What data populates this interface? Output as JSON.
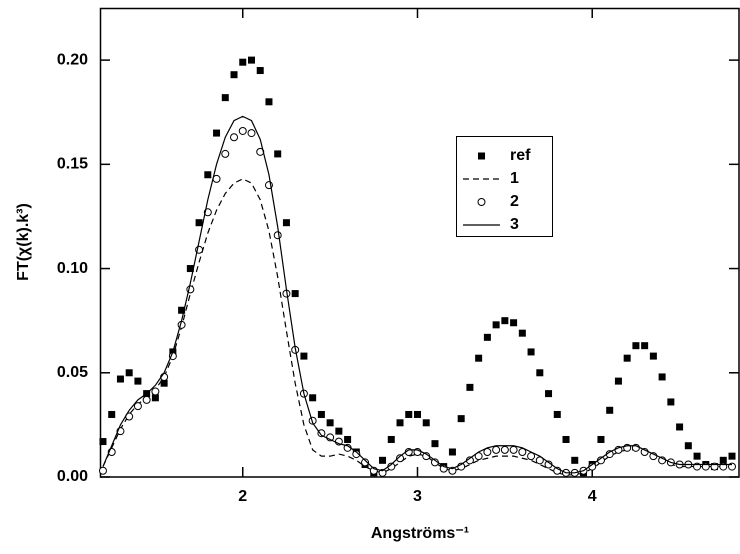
{
  "chart_data": {
    "type": "scatter-line",
    "ylabel": "FT(χ(k).k³)",
    "xlabel": "Angströms⁻¹",
    "xlim": [
      1.183,
      4.84
    ],
    "ylim": [
      0,
      0.225
    ],
    "xticks": [
      2,
      3,
      4
    ],
    "yticks": [
      {
        "value": 0,
        "label": "0.00"
      },
      {
        "value": 0.05,
        "label": "0.05"
      },
      {
        "value": 0.1,
        "label": "0.10"
      },
      {
        "value": 0.15,
        "label": "0.15"
      },
      {
        "value": 0.2,
        "label": "0.20"
      }
    ],
    "grid": false,
    "legend": "upper center",
    "x": [
      1.2,
      1.25,
      1.3,
      1.35,
      1.4,
      1.45,
      1.5,
      1.55,
      1.6,
      1.65,
      1.7,
      1.75,
      1.8,
      1.85,
      1.9,
      1.95,
      2.0,
      2.05,
      2.1,
      2.15,
      2.2,
      2.25,
      2.3,
      2.35,
      2.4,
      2.45,
      2.5,
      2.55,
      2.6,
      2.65,
      2.7,
      2.75,
      2.8,
      2.85,
      2.9,
      2.95,
      3.0,
      3.05,
      3.1,
      3.15,
      3.2,
      3.25,
      3.3,
      3.35,
      3.4,
      3.45,
      3.5,
      3.55,
      3.6,
      3.65,
      3.7,
      3.75,
      3.8,
      3.85,
      3.9,
      3.95,
      4.0,
      4.05,
      4.1,
      4.15,
      4.2,
      4.25,
      4.3,
      4.35,
      4.4,
      4.45,
      4.5,
      4.55,
      4.6,
      4.65,
      4.7,
      4.75,
      4.8
    ],
    "series": [
      {
        "name": "ref",
        "color": "#000000",
        "marker": "square",
        "line": "none",
        "values": [
          0.017,
          0.03,
          0.047,
          0.05,
          0.046,
          0.04,
          0.038,
          0.045,
          0.06,
          0.08,
          0.1,
          0.122,
          0.145,
          0.165,
          0.182,
          0.193,
          0.199,
          0.2,
          0.195,
          0.18,
          0.155,
          0.122,
          0.088,
          0.058,
          0.038,
          0.03,
          0.026,
          0.022,
          0.018,
          0.012,
          0.006,
          0.002,
          0.008,
          0.018,
          0.026,
          0.03,
          0.03,
          0.026,
          0.016,
          0.005,
          0.012,
          0.028,
          0.043,
          0.057,
          0.067,
          0.073,
          0.075,
          0.074,
          0.069,
          0.06,
          0.05,
          0.04,
          0.03,
          0.018,
          0.008,
          0.002,
          0.006,
          0.018,
          0.032,
          0.046,
          0.057,
          0.063,
          0.063,
          0.058,
          0.048,
          0.036,
          0.024,
          0.015,
          0.01,
          0.006,
          0.005,
          0.008,
          0.01
        ]
      },
      {
        "name": "1",
        "color": "#000000",
        "marker": "none",
        "line": "dashed",
        "values": [
          0.005,
          0.014,
          0.023,
          0.03,
          0.035,
          0.038,
          0.042,
          0.048,
          0.058,
          0.072,
          0.088,
          0.103,
          0.117,
          0.128,
          0.136,
          0.141,
          0.143,
          0.141,
          0.133,
          0.118,
          0.096,
          0.07,
          0.045,
          0.025,
          0.013,
          0.01,
          0.01,
          0.011,
          0.01,
          0.008,
          0.005,
          0.003,
          0.002,
          0.004,
          0.007,
          0.01,
          0.011,
          0.01,
          0.007,
          0.004,
          0.003,
          0.004,
          0.006,
          0.008,
          0.009,
          0.01,
          0.01,
          0.01,
          0.009,
          0.008,
          0.006,
          0.004,
          0.002,
          0.001,
          0.001,
          0.002,
          0.004,
          0.007,
          0.01,
          0.012,
          0.013,
          0.013,
          0.012,
          0.01,
          0.008,
          0.006,
          0.005,
          0.005,
          0.005,
          0.005,
          0.005,
          0.005,
          0.005
        ]
      },
      {
        "name": "2",
        "color": "#000000",
        "marker": "circle",
        "line": "none",
        "values": [
          0.003,
          0.012,
          0.022,
          0.029,
          0.034,
          0.037,
          0.041,
          0.048,
          0.058,
          0.073,
          0.09,
          0.109,
          0.127,
          0.143,
          0.155,
          0.163,
          0.166,
          0.165,
          0.156,
          0.14,
          0.116,
          0.088,
          0.061,
          0.04,
          0.027,
          0.021,
          0.019,
          0.017,
          0.014,
          0.011,
          0.007,
          0.003,
          0.002,
          0.005,
          0.009,
          0.012,
          0.012,
          0.01,
          0.007,
          0.004,
          0.003,
          0.005,
          0.008,
          0.01,
          0.012,
          0.013,
          0.013,
          0.013,
          0.012,
          0.01,
          0.008,
          0.006,
          0.003,
          0.002,
          0.002,
          0.003,
          0.005,
          0.008,
          0.011,
          0.013,
          0.014,
          0.014,
          0.012,
          0.01,
          0.008,
          0.007,
          0.006,
          0.006,
          0.005,
          0.005,
          0.005,
          0.005,
          0.005
        ]
      },
      {
        "name": "3",
        "color": "#000000",
        "marker": "none",
        "line": "solid",
        "values": [
          0.005,
          0.015,
          0.025,
          0.032,
          0.037,
          0.04,
          0.044,
          0.05,
          0.06,
          0.075,
          0.093,
          0.113,
          0.133,
          0.15,
          0.163,
          0.171,
          0.173,
          0.171,
          0.162,
          0.145,
          0.12,
          0.09,
          0.062,
          0.04,
          0.026,
          0.02,
          0.018,
          0.016,
          0.015,
          0.012,
          0.008,
          0.004,
          0.003,
          0.006,
          0.01,
          0.013,
          0.013,
          0.011,
          0.008,
          0.005,
          0.004,
          0.006,
          0.009,
          0.012,
          0.014,
          0.015,
          0.015,
          0.015,
          0.014,
          0.012,
          0.01,
          0.007,
          0.004,
          0.002,
          0.002,
          0.003,
          0.006,
          0.009,
          0.012,
          0.014,
          0.015,
          0.015,
          0.013,
          0.011,
          0.009,
          0.007,
          0.006,
          0.006,
          0.006,
          0.006,
          0.006,
          0.006,
          0.006
        ]
      }
    ]
  }
}
